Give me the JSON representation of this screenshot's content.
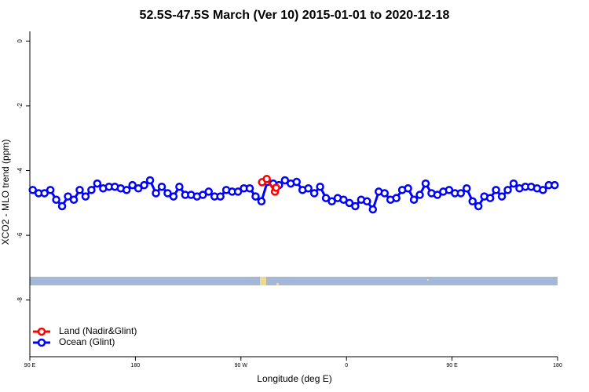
{
  "chart_data": {
    "type": "line",
    "title": "52.5S-47.5S March (Ver 10)   2015-01-01 to 2020-12-18",
    "x_label": "Longitude (deg E)",
    "y_label": "XCO2 - MLO trend (ppm)",
    "xlim": [
      90,
      540
    ],
    "ylim": [
      -9.75,
      0.3
    ],
    "xticks": [
      {
        "value": 90,
        "label": "90 E"
      },
      180,
      {
        "value": 270,
        "label": "90 W"
      },
      {
        "value": 360,
        "label": "0"
      },
      {
        "value": 450,
        "label": "90 E"
      },
      {
        "value": 540,
        "label": "180"
      }
    ],
    "yticks": [
      0,
      -2,
      -4,
      -6,
      -8
    ],
    "legend": "bottom-left",
    "series": [
      {
        "name": "Land (Nadir&Glint)",
        "color": "#ff0000",
        "x": [
          288,
          292,
          299,
          300
        ],
        "values": [
          -4.36,
          -4.26,
          -4.65,
          -4.53
        ]
      },
      {
        "name": "Ocean (Glint)",
        "color": "#0000ff",
        "x": [
          92.5,
          97.5,
          102.5,
          107.5,
          112.5,
          117.5,
          122.5,
          127.5,
          132.5,
          137.5,
          142.5,
          147.5,
          152.5,
          157.5,
          162.5,
          167.5,
          172.5,
          177.5,
          182.5,
          187.5,
          192.5,
          197.5,
          202.5,
          207.5,
          212.5,
          217.5,
          222.5,
          227.5,
          232.5,
          237.5,
          242.5,
          247.5,
          252.5,
          257.5,
          262.5,
          267.5,
          272.5,
          277.5,
          282.5,
          287.5,
          292.5,
          297.5,
          302.5,
          307.5,
          312.5,
          317.5,
          322.5,
          327.5,
          332.5,
          337.5,
          342.5,
          347.5,
          352.5,
          357.5,
          362.5,
          367.5,
          372.5,
          377.5,
          382.5,
          387.5,
          392.5,
          397.5,
          402.5,
          407.5,
          412.5,
          417.5,
          422.5,
          427.5,
          432.5,
          437.5,
          442.5,
          447.5,
          452.5,
          457.5,
          462.5,
          467.5,
          472.5,
          477.5,
          482.5,
          487.5,
          492.5,
          497.5,
          502.5,
          507.5,
          512.5,
          517.5,
          522.5,
          527.5,
          532.5,
          537.5
        ],
        "values": [
          -4.6,
          -4.7,
          -4.7,
          -4.6,
          -4.9,
          -5.1,
          -4.8,
          -4.9,
          -4.6,
          -4.8,
          -4.6,
          -4.4,
          -4.55,
          -4.5,
          -4.5,
          -4.55,
          -4.6,
          -4.45,
          -4.55,
          -4.45,
          -4.3,
          -4.7,
          -4.5,
          -4.7,
          -4.8,
          -4.5,
          -4.75,
          -4.75,
          -4.8,
          -4.75,
          -4.65,
          -4.8,
          -4.8,
          -4.6,
          -4.65,
          -4.65,
          -4.55,
          -4.55,
          -4.8,
          -4.95,
          -4.35,
          -4.4,
          -4.45,
          -4.3,
          -4.4,
          -4.35,
          -4.6,
          -4.55,
          -4.7,
          -4.5,
          -4.85,
          -4.95,
          -4.85,
          -4.9,
          -5.0,
          -5.1,
          -4.9,
          -4.95,
          -5.2,
          -4.65,
          -4.7,
          -4.9,
          -4.85,
          -4.6,
          -4.55,
          -4.9,
          -4.75,
          -4.4,
          -4.7,
          -4.75,
          -4.65,
          -4.6,
          -4.7,
          -4.7,
          -4.55,
          -4.95,
          -5.1,
          -4.8,
          -4.85,
          -4.6,
          -4.8,
          -4.6,
          -4.4,
          -4.55,
          -4.5,
          -4.5,
          -4.55,
          -4.6,
          -4.45,
          -4.45
        ]
      }
    ]
  }
}
